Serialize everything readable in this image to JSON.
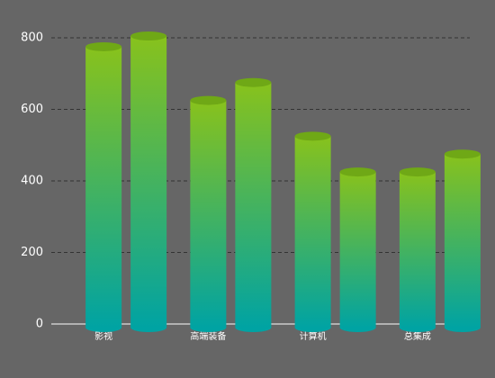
{
  "chart_data": {
    "type": "cylinder-bar",
    "categories": [
      "影视",
      "高端装备",
      "计算机",
      "总集成"
    ],
    "series": [
      {
        "values": [
          775,
          625,
          525,
          425
        ]
      },
      {
        "values": [
          805,
          675,
          425,
          475
        ]
      }
    ],
    "gradient": [
      "#88c21c",
      "#00a3a3"
    ],
    "cap_color": "#6fa816",
    "ylim": [
      0,
      800
    ],
    "yticks": [
      0,
      200,
      400,
      600,
      800
    ],
    "grid": true
  }
}
